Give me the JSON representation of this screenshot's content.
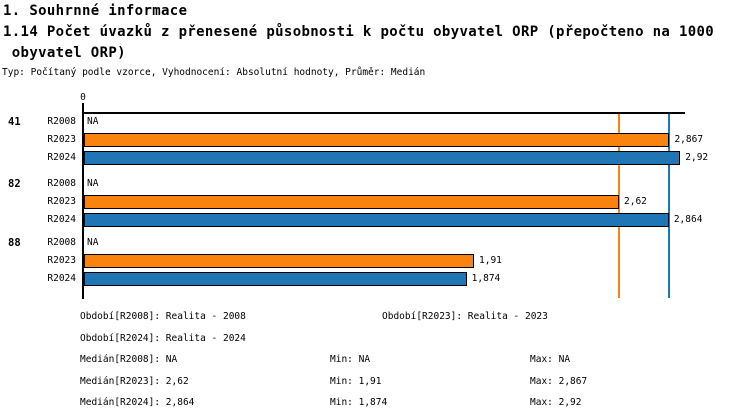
{
  "header": {
    "section_title": "1. Souhrnné informace",
    "indicator_line1": "1.14 Počet úvazků z přenesené působnosti k počtu obyvatel ORP (přepočteno na 1000",
    "indicator_line2": " obyvatel ORP)",
    "meta": "Typ: Počítaný podle vzorce, Vyhodnocení: Absolutní hodnoty, Průměr: Medián"
  },
  "chart_data": {
    "type": "bar",
    "orientation": "horizontal",
    "title": "1.14 Počet úvazků z přenesené působnosti k počtu obyvatel ORP (přepočteno na 1000 obyvatel ORP)",
    "xlabel": "",
    "ylabel": "",
    "xlim": [
      0,
      2.95
    ],
    "x_axis_tick": "0",
    "grid": false,
    "categories": [
      "41",
      "82",
      "88"
    ],
    "series": [
      {
        "name": "R2008",
        "period": "Realita - 2008",
        "color": null,
        "values": [
          null,
          null,
          null
        ],
        "displays": [
          "NA",
          "NA",
          "NA"
        ]
      },
      {
        "name": "R2023",
        "period": "Realita - 2023",
        "color": "#F9830E",
        "values": [
          2.867,
          2.62,
          1.91
        ],
        "displays": [
          "2,867",
          "2,62",
          "1,91"
        ]
      },
      {
        "name": "R2024",
        "period": "Realita - 2024",
        "color": "#2076B4",
        "values": [
          2.92,
          2.864,
          1.874
        ],
        "displays": [
          "2,92",
          "2,864",
          "1,874"
        ]
      }
    ],
    "median_lines": [
      {
        "series": "R2023",
        "value": 2.62,
        "color": "#F9830E"
      },
      {
        "series": "R2024",
        "value": 2.864,
        "color": "#2076B4"
      }
    ],
    "stats": {
      "R2008": {
        "median": "NA",
        "min": "NA",
        "max": "NA"
      },
      "R2023": {
        "median": "2,62",
        "min": "1,91",
        "max": "2,867"
      },
      "R2024": {
        "median": "2,864",
        "min": "1,874",
        "max": "2,92"
      }
    }
  },
  "legend": {
    "rows": [
      {
        "c1": "Období[R2008]: Realita - 2008",
        "c2": "Období[R2023]: Realita - 2023"
      },
      {
        "c1": "Období[R2024]: Realita - 2024"
      },
      {
        "c1": "Medián[R2008]: NA",
        "min": "Min: NA",
        "max": "Max: NA"
      },
      {
        "c1": "Medián[R2023]: 2,62",
        "min": "Min: 1,91",
        "max": "Max: 2,867"
      },
      {
        "c1": "Medián[R2024]: 2,864",
        "min": "Min: 1,874",
        "max": "Max: 2,92"
      }
    ]
  }
}
